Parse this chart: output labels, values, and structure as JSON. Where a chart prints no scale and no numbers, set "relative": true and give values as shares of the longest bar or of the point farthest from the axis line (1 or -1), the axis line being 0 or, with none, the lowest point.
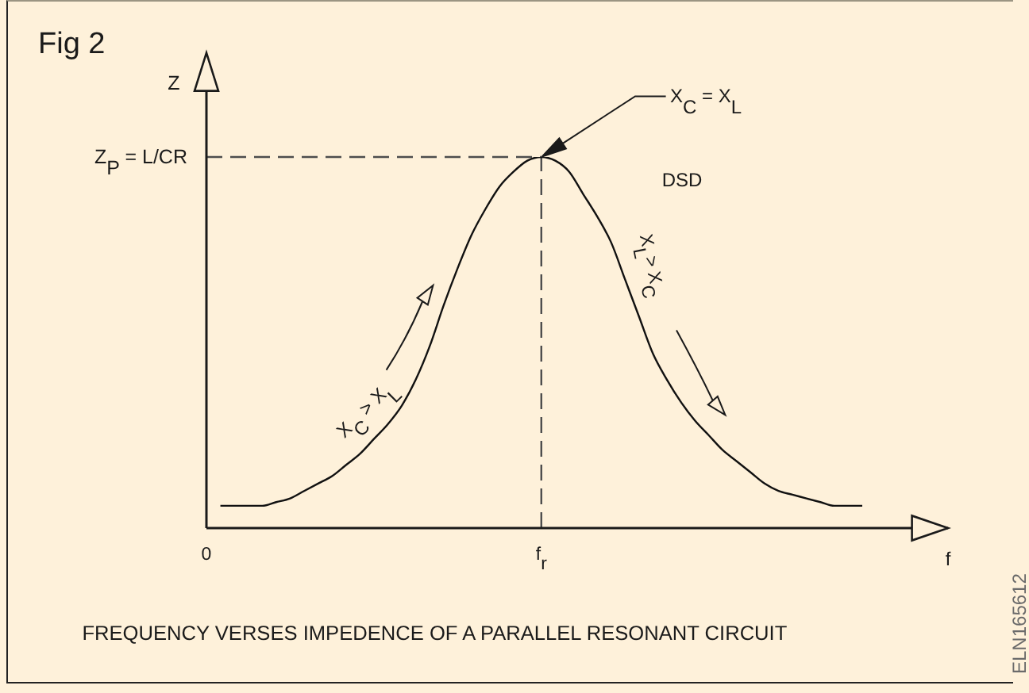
{
  "chart_data": {
    "type": "line",
    "title": "Fig 2",
    "xlabel": "f",
    "ylabel": "Z",
    "relative": true,
    "color": "#111111",
    "categories": [
      "0",
      null,
      null,
      null,
      null,
      null,
      null,
      null,
      null,
      null,
      null,
      null,
      null,
      null,
      null,
      null,
      null,
      null,
      null,
      null,
      null,
      null,
      null,
      null,
      "f$_{r}$",
      null,
      null,
      null,
      null,
      null,
      null,
      null,
      null,
      null,
      null,
      null,
      null,
      null,
      null,
      null,
      null,
      null,
      null,
      null,
      null,
      null,
      null,
      null
    ],
    "values": [
      null,
      0.06,
      0.06,
      0.06,
      0.06,
      0.07,
      0.08,
      0.1,
      0.12,
      0.14,
      0.17,
      0.2,
      0.24,
      0.28,
      0.33,
      0.4,
      0.49,
      0.6,
      0.7,
      0.79,
      0.86,
      0.92,
      0.96,
      0.99,
      1.0,
      0.99,
      0.96,
      0.9,
      0.84,
      0.77,
      0.67,
      0.57,
      0.47,
      0.4,
      0.34,
      0.29,
      0.25,
      0.21,
      0.18,
      0.15,
      0.12,
      0.1,
      0.09,
      0.08,
      0.07,
      0.06,
      0.06,
      0.06
    ],
    "ref_lines": [
      {
        "axis": "y",
        "value": 1,
        "label": "Z$_{P}$ = L/CR",
        "line_style": "dashed",
        "color": "#4d4d4d"
      },
      {
        "axis": "x",
        "value": "f$_{r}$",
        "line_style": "dashed",
        "color": "#4d4d4d"
      }
    ],
    "annotations": [
      "X$_{C}$ = X$_{L}$",
      "DSD",
      "X$_{L}$> X$_{C}$",
      "X$_{C}$ > X$_{L}$",
      "FREQUENCY VERSES IMPEDENCE OF A PARALLEL RESONANT CIRCUIT",
      "ELN165612"
    ]
  }
}
